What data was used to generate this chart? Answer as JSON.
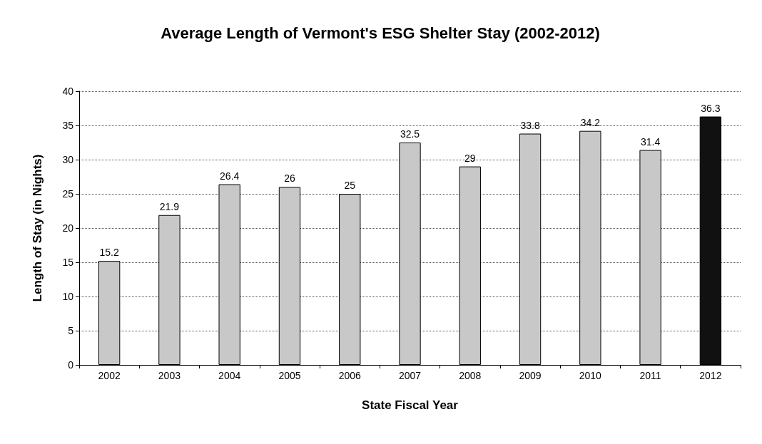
{
  "chart_data": {
    "type": "bar",
    "title": "Average Length of Vermont's ESG Shelter Stay (2002-2012)",
    "xlabel": "State Fiscal Year",
    "ylabel": "Length of Stay (in Nights)",
    "categories": [
      "2002",
      "2003",
      "2004",
      "2005",
      "2006",
      "2007",
      "2008",
      "2009",
      "2010",
      "2011",
      "2012"
    ],
    "values": [
      15.2,
      21.9,
      26.4,
      26,
      25,
      32.5,
      29,
      33.8,
      34.2,
      31.4,
      36.3
    ],
    "colors": [
      "#c8c8c8",
      "#c8c8c8",
      "#c8c8c8",
      "#c8c8c8",
      "#c8c8c8",
      "#c8c8c8",
      "#c8c8c8",
      "#c8c8c8",
      "#c8c8c8",
      "#c8c8c8",
      "#111111"
    ],
    "ylim": [
      0,
      40
    ],
    "yticks": [
      0,
      5,
      10,
      15,
      20,
      25,
      30,
      35,
      40
    ],
    "grid": "y",
    "data_labels": true
  }
}
